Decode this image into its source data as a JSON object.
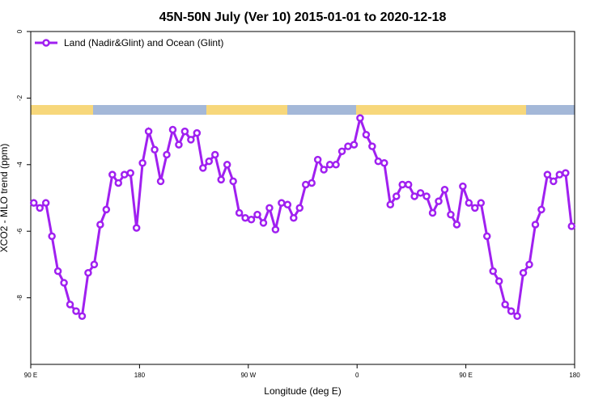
{
  "chart_data": {
    "type": "line",
    "title": "45N-50N July (Ver 10)   2015-01-01 to 2020-12-18",
    "x_label": "Longitude (deg E)",
    "y_label": "XCO2 - MLO trend (ppm)",
    "legend_position": "top-left",
    "xlim": [
      90,
      540
    ],
    "ylim": [
      -10,
      0
    ],
    "xticks": [
      {
        "value": 90,
        "label": "90 E"
      },
      180,
      {
        "value": 270,
        "label": "90 W"
      },
      {
        "value": 360,
        "label": "0"
      },
      {
        "value": 450,
        "label": "90 E"
      },
      {
        "value": 540,
        "label": "180"
      }
    ],
    "yticks": [
      0,
      -2,
      -4,
      -6,
      -8
    ],
    "x": [
      92.5,
      97.5,
      102.5,
      107.5,
      112.5,
      117.5,
      122.5,
      127.5,
      132.5,
      137.5,
      142.5,
      147.5,
      152.5,
      157.5,
      162.5,
      167.5,
      172.5,
      177.5,
      182.5,
      187.5,
      192.5,
      197.5,
      202.5,
      207.5,
      212.5,
      217.5,
      222.5,
      227.5,
      232.5,
      237.5,
      242.5,
      247.5,
      252.5,
      257.5,
      262.5,
      267.5,
      272.5,
      277.5,
      282.5,
      287.5,
      292.5,
      297.5,
      302.5,
      307.5,
      312.5,
      317.5,
      322.5,
      327.5,
      332.5,
      337.5,
      342.5,
      347.5,
      352.5,
      357.5,
      362.5,
      367.5,
      372.5,
      377.5,
      382.5,
      387.5,
      392.5,
      397.5,
      402.5,
      407.5,
      412.5,
      417.5,
      422.5,
      427.5,
      432.5,
      437.5,
      442.5,
      447.5,
      452.5,
      457.5,
      462.5,
      467.5,
      472.5,
      477.5,
      482.5,
      487.5,
      492.5,
      497.5,
      502.5,
      507.5,
      512.5,
      517.5,
      522.5,
      527.5,
      532.5,
      537.5
    ],
    "series": [
      {
        "name": "Land (Nadir&Glint) and Ocean (Glint)",
        "color": "#a020f0",
        "values": [
          -5.15,
          -5.3,
          -5.15,
          -6.15,
          -7.2,
          -7.55,
          -8.2,
          -8.4,
          -8.55,
          -7.25,
          -7.0,
          -5.8,
          -5.35,
          -4.3,
          -4.55,
          -4.3,
          -4.25,
          -5.9,
          -3.95,
          -3.0,
          -3.55,
          -4.5,
          -3.7,
          -2.95,
          -3.4,
          -3.0,
          -3.25,
          -3.05,
          -4.1,
          -3.9,
          -3.7,
          -4.45,
          -4.0,
          -4.5,
          -5.45,
          -5.6,
          -5.65,
          -5.5,
          -5.75,
          -5.3,
          -5.95,
          -5.15,
          -5.2,
          -5.6,
          -5.3,
          -4.6,
          -4.55,
          -3.85,
          -4.15,
          -4.0,
          -4.0,
          -3.6,
          -3.45,
          -3.4,
          -2.6,
          -3.1,
          -3.45,
          -3.9,
          -3.95,
          -5.2,
          -4.95,
          -4.6,
          -4.6,
          -4.95,
          -4.85,
          -4.95,
          -5.45,
          -5.1,
          -4.75,
          -5.5,
          -5.8,
          -4.65,
          -5.15,
          -5.3,
          -5.15,
          -6.15,
          -7.2,
          -7.5,
          -8.2,
          -8.4,
          -8.55,
          -7.25,
          -7.0,
          -5.8,
          -5.35,
          -4.3,
          -4.5,
          -4.3,
          -4.25,
          -5.85
        ]
      }
    ]
  }
}
